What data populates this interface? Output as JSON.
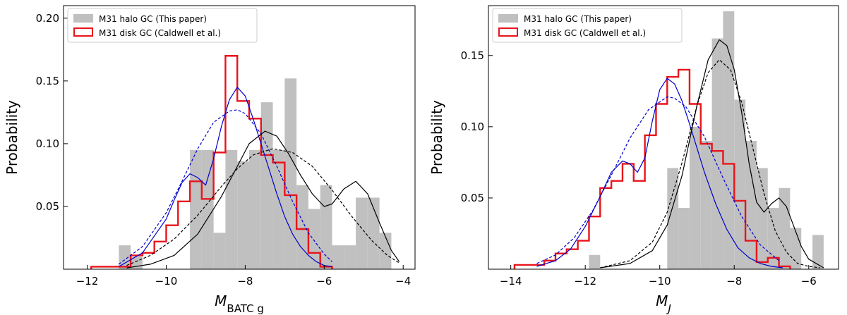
{
  "chart_data": [
    {
      "type": "bar",
      "ylabel": "Probability",
      "xlabel_main": "M",
      "xlabel_sub": "BATC g",
      "xlim": [
        -12.6,
        -3.7
      ],
      "ylim": [
        0,
        0.21
      ],
      "xticks": [
        -12,
        -10,
        -8,
        -6,
        -4
      ],
      "xtick_labels": [
        "−12",
        "−10",
        "−8",
        "−6",
        "−4"
      ],
      "yticks": [
        0.05,
        0.1,
        0.15,
        0.2
      ],
      "ytick_labels": [
        "0.05",
        "0.10",
        "0.15",
        "0.20"
      ],
      "legend": {
        "placement": "top-left",
        "entries": [
          "M31 halo GC (This paper)",
          "M31 disk GC (Caldwell et al.)"
        ]
      },
      "halo_hist": {
        "color": "#c0c0c0",
        "edges": [
          -11.2,
          -10.9,
          -10.6,
          -10.3,
          -10.0,
          -9.7,
          -9.4,
          -9.1,
          -8.8,
          -8.5,
          -8.2,
          -7.9,
          -7.6,
          -7.3,
          -7.0,
          -6.7,
          -6.4,
          -6.1,
          -5.8,
          -5.5,
          -5.2,
          -4.9,
          -4.6,
          -4.3
        ],
        "values": [
          0.019,
          0.01,
          0,
          0,
          0,
          0,
          0.095,
          0.095,
          0.029,
          0.095,
          0.086,
          0.095,
          0.133,
          0.095,
          0.152,
          0.067,
          0.048,
          0.067,
          0.019,
          0.019,
          0.057,
          0.057,
          0.029
        ]
      },
      "disk_hist": {
        "color": "#e8141b",
        "edges": [
          -11.9,
          -11.2,
          -10.9,
          -10.6,
          -10.3,
          -10.0,
          -9.7,
          -9.4,
          -9.1,
          -8.8,
          -8.5,
          -8.2,
          -7.9,
          -7.6,
          -7.3,
          -7.0,
          -6.7,
          -6.4,
          -6.1,
          -5.8
        ],
        "values": [
          0.002,
          0.002,
          0.011,
          0.013,
          0.022,
          0.035,
          0.054,
          0.07,
          0.056,
          0.093,
          0.17,
          0.134,
          0.12,
          0.091,
          0.085,
          0.059,
          0.032,
          0.013,
          0.002
        ]
      },
      "curves": [
        {
          "name": "disk-fit-solid",
          "color": "#0000cc",
          "dash": false,
          "x": [
            -11.2,
            -10.6,
            -10.0,
            -9.8,
            -9.6,
            -9.4,
            -9.2,
            -9.0,
            -8.8,
            -8.6,
            -8.4,
            -8.2,
            -8.0,
            -7.8,
            -7.6,
            -7.4,
            -7.2,
            -7.0,
            -6.8,
            -6.6,
            -6.4,
            -6.2,
            -6.0,
            -5.8
          ],
          "y": [
            0.002,
            0.013,
            0.04,
            0.055,
            0.069,
            0.076,
            0.073,
            0.067,
            0.088,
            0.114,
            0.135,
            0.145,
            0.138,
            0.12,
            0.1,
            0.08,
            0.06,
            0.042,
            0.028,
            0.018,
            0.011,
            0.006,
            0.003,
            0.002
          ]
        },
        {
          "name": "disk-fit-dashed",
          "color": "#0000cc",
          "dash": true,
          "x": [
            -11.2,
            -10.6,
            -10.0,
            -9.6,
            -9.2,
            -8.8,
            -8.4,
            -8.2,
            -8.0,
            -7.6,
            -7.2,
            -6.8,
            -6.4,
            -6.0,
            -5.8
          ],
          "y": [
            0.004,
            0.018,
            0.045,
            0.07,
            0.096,
            0.117,
            0.126,
            0.127,
            0.124,
            0.108,
            0.082,
            0.054,
            0.029,
            0.012,
            0.006
          ]
        },
        {
          "name": "halo-fit-solid",
          "color": "#000000",
          "dash": false,
          "x": [
            -11.0,
            -10.4,
            -9.8,
            -9.2,
            -8.6,
            -8.2,
            -7.9,
            -7.5,
            -7.2,
            -6.9,
            -6.6,
            -6.3,
            -6.0,
            -5.8,
            -5.5,
            -5.2,
            -4.9,
            -4.6,
            -4.3,
            -4.1
          ],
          "y": [
            0.001,
            0.004,
            0.011,
            0.028,
            0.058,
            0.082,
            0.1,
            0.11,
            0.106,
            0.092,
            0.075,
            0.06,
            0.05,
            0.052,
            0.064,
            0.07,
            0.06,
            0.037,
            0.015,
            0.006
          ]
        },
        {
          "name": "halo-fit-dashed",
          "color": "#000000",
          "dash": true,
          "x": [
            -11.0,
            -10.4,
            -9.8,
            -9.2,
            -8.6,
            -8.2,
            -7.8,
            -7.3,
            -6.8,
            -6.3,
            -5.8,
            -5.3,
            -4.8,
            -4.4,
            -4.1
          ],
          "y": [
            0.003,
            0.011,
            0.024,
            0.043,
            0.066,
            0.08,
            0.091,
            0.096,
            0.093,
            0.082,
            0.063,
            0.042,
            0.023,
            0.011,
            0.005
          ]
        }
      ]
    },
    {
      "type": "bar",
      "ylabel": "Probability",
      "xlabel_main": "M",
      "xlabel_sub": "J",
      "xlim": [
        -14.6,
        -5.2
      ],
      "ylim": [
        0,
        0.185
      ],
      "xticks": [
        -14,
        -12,
        -10,
        -8,
        -6
      ],
      "xtick_labels": [
        "−14",
        "−12",
        "−10",
        "−8",
        "−6"
      ],
      "yticks": [
        0.05,
        0.1,
        0.15
      ],
      "ytick_labels": [
        "0.05",
        "0.10",
        "0.15"
      ],
      "legend": {
        "placement": "top-left",
        "entries": [
          "M31 halo GC (This paper)",
          "M31 disk GC (Caldwell et al.)"
        ]
      },
      "halo_hist": {
        "color": "#c0c0c0",
        "edges": [
          -11.9,
          -11.6,
          -11.3,
          -11.0,
          -10.7,
          -10.4,
          -10.1,
          -9.8,
          -9.5,
          -9.2,
          -8.9,
          -8.6,
          -8.3,
          -8.0,
          -7.7,
          -7.4,
          -7.1,
          -6.8,
          -6.5,
          -6.2,
          -5.9,
          -5.6
        ],
        "values": [
          0.01,
          0,
          0,
          0,
          0,
          0,
          0,
          0.071,
          0.043,
          0.1,
          0.09,
          0.162,
          0.181,
          0.119,
          0.09,
          0.071,
          0.043,
          0.057,
          0.029,
          0,
          0.024
        ]
      },
      "disk_hist": {
        "color": "#e8141b",
        "edges": [
          -13.9,
          -13.1,
          -12.8,
          -12.5,
          -12.2,
          -11.9,
          -11.6,
          -11.3,
          -11.0,
          -10.7,
          -10.4,
          -10.1,
          -9.8,
          -9.5,
          -9.2,
          -8.9,
          -8.6,
          -8.3,
          -8.0,
          -7.7,
          -7.4,
          -7.1,
          -6.8,
          -6.5
        ],
        "values": [
          0.003,
          0.006,
          0.011,
          0.014,
          0.02,
          0.037,
          0.057,
          0.062,
          0.074,
          0.062,
          0.094,
          0.116,
          0.135,
          0.14,
          0.116,
          0.088,
          0.083,
          0.074,
          0.048,
          0.02,
          0.005,
          0.008,
          0.002
        ]
      },
      "curves": [
        {
          "name": "disk-fit-solid",
          "color": "#0000cc",
          "dash": false,
          "x": [
            -13.3,
            -12.8,
            -12.4,
            -12.0,
            -11.6,
            -11.3,
            -11.0,
            -10.8,
            -10.6,
            -10.4,
            -10.2,
            -10.0,
            -9.8,
            -9.6,
            -9.4,
            -9.2,
            -9.0,
            -8.8,
            -8.5,
            -8.2,
            -7.9,
            -7.6,
            -7.3,
            -7.0,
            -6.7
          ],
          "y": [
            0.002,
            0.006,
            0.014,
            0.03,
            0.051,
            0.068,
            0.076,
            0.074,
            0.068,
            0.078,
            0.104,
            0.126,
            0.134,
            0.13,
            0.118,
            0.102,
            0.085,
            0.068,
            0.046,
            0.028,
            0.015,
            0.008,
            0.004,
            0.002,
            0.001
          ]
        },
        {
          "name": "disk-fit-dashed",
          "color": "#0000cc",
          "dash": true,
          "x": [
            -13.3,
            -12.8,
            -12.3,
            -11.8,
            -11.3,
            -10.8,
            -10.3,
            -9.8,
            -9.6,
            -9.3,
            -8.8,
            -8.3,
            -7.8,
            -7.3,
            -6.8
          ],
          "y": [
            0.004,
            0.01,
            0.022,
            0.041,
            0.066,
            0.092,
            0.112,
            0.121,
            0.12,
            0.114,
            0.093,
            0.064,
            0.037,
            0.017,
            0.006
          ]
        },
        {
          "name": "halo-fit-solid",
          "color": "#000000",
          "dash": false,
          "x": [
            -11.6,
            -10.8,
            -10.2,
            -9.8,
            -9.4,
            -9.0,
            -8.7,
            -8.4,
            -8.2,
            -8.0,
            -7.8,
            -7.6,
            -7.4,
            -7.2,
            -7.0,
            -6.8,
            -6.6,
            -6.4,
            -6.2,
            -6.0,
            -5.6
          ],
          "y": [
            0.001,
            0.004,
            0.013,
            0.031,
            0.066,
            0.115,
            0.147,
            0.161,
            0.157,
            0.14,
            0.11,
            0.074,
            0.047,
            0.04,
            0.046,
            0.05,
            0.044,
            0.03,
            0.016,
            0.007,
            0.001
          ]
        },
        {
          "name": "halo-fit-dashed",
          "color": "#000000",
          "dash": true,
          "x": [
            -11.6,
            -10.8,
            -10.2,
            -9.8,
            -9.4,
            -9.0,
            -8.7,
            -8.4,
            -8.1,
            -7.8,
            -7.5,
            -7.2,
            -6.9,
            -6.6,
            -6.3,
            -6.0,
            -5.7
          ],
          "y": [
            0.001,
            0.006,
            0.019,
            0.04,
            0.075,
            0.115,
            0.138,
            0.147,
            0.14,
            0.117,
            0.085,
            0.053,
            0.027,
            0.012,
            0.004,
            0.002,
            0.001
          ]
        }
      ]
    }
  ]
}
